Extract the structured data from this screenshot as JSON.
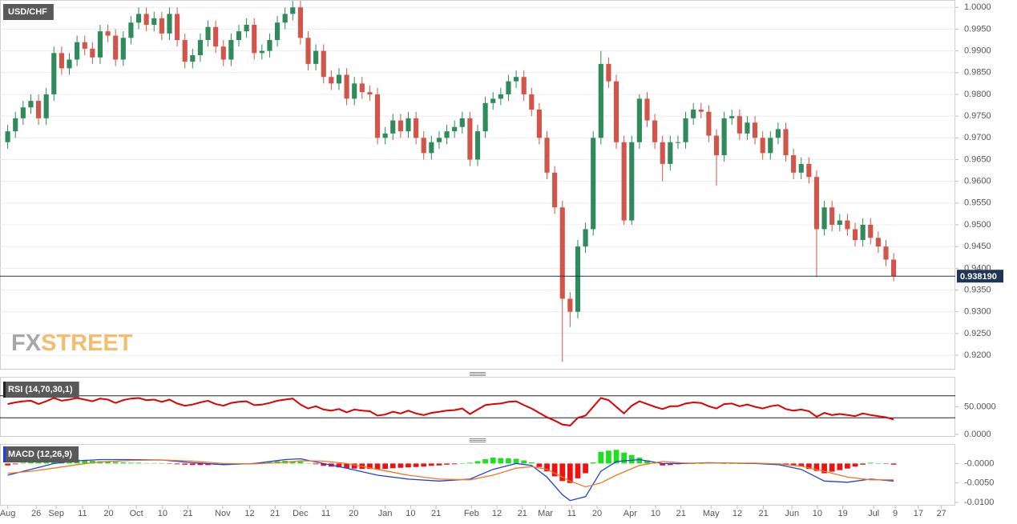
{
  "chart_data": [
    {
      "type": "candlestick",
      "title": "USD/CHF",
      "up_color": "#2f8a5c",
      "down_color": "#d2554a",
      "grid": true,
      "xlim": [
        -1,
        123
      ],
      "xticks": [
        {
          "value": 0.0,
          "label": "Aug"
        },
        {
          "value": 3.7,
          "label": "26"
        },
        {
          "value": 6.3,
          "label": "Sep"
        },
        {
          "value": 9.7,
          "label": "11"
        },
        {
          "value": 13.1,
          "label": "20"
        },
        {
          "value": 16.7,
          "label": "Oct"
        },
        {
          "value": 20.1,
          "label": "10"
        },
        {
          "value": 23.4,
          "label": "21"
        },
        {
          "value": 27.9,
          "label": "Nov"
        },
        {
          "value": 31.4,
          "label": "12"
        },
        {
          "value": 34.7,
          "label": "21"
        },
        {
          "value": 38.0,
          "label": "Dec"
        },
        {
          "value": 41.3,
          "label": "11"
        },
        {
          "value": 44.9,
          "label": "20"
        },
        {
          "value": 49.0,
          "label": "Jan"
        },
        {
          "value": 52.3,
          "label": "10"
        },
        {
          "value": 55.6,
          "label": "21"
        },
        {
          "value": 60.2,
          "label": "Feb"
        },
        {
          "value": 63.5,
          "label": "12"
        },
        {
          "value": 66.8,
          "label": "21"
        },
        {
          "value": 69.8,
          "label": "Mar"
        },
        {
          "value": 73.2,
          "label": "11"
        },
        {
          "value": 76.5,
          "label": "20"
        },
        {
          "value": 80.8,
          "label": "Apr"
        },
        {
          "value": 84.1,
          "label": "10"
        },
        {
          "value": 87.4,
          "label": "21"
        },
        {
          "value": 91.3,
          "label": "May"
        },
        {
          "value": 94.7,
          "label": "12"
        },
        {
          "value": 98.1,
          "label": "21"
        },
        {
          "value": 101.8,
          "label": "Jun"
        },
        {
          "value": 105.1,
          "label": "10"
        },
        {
          "value": 108.4,
          "label": "19"
        },
        {
          "value": 112.4,
          "label": "Jul"
        },
        {
          "value": 115.2,
          "label": "9"
        },
        {
          "value": 118.2,
          "label": "17"
        },
        {
          "value": 121.2,
          "label": "27"
        }
      ],
      "ylim": [
        0.9167,
        1.0017
      ],
      "yticks": [
        {
          "value": 1.0,
          "label": "1.0000"
        },
        {
          "value": 0.995,
          "label": "0.9950"
        },
        {
          "value": 0.99,
          "label": "0.9900"
        },
        {
          "value": 0.985,
          "label": "0.9850"
        },
        {
          "value": 0.98,
          "label": "0.9800"
        },
        {
          "value": 0.975,
          "label": "0.9750"
        },
        {
          "value": 0.97,
          "label": "0.9700"
        },
        {
          "value": 0.965,
          "label": "0.9650"
        },
        {
          "value": 0.96,
          "label": "0.9600"
        },
        {
          "value": 0.955,
          "label": "0.9550"
        },
        {
          "value": 0.95,
          "label": "0.9500"
        },
        {
          "value": 0.945,
          "label": "0.9450"
        },
        {
          "value": 0.94,
          "label": "0.9400"
        },
        {
          "value": 0.935,
          "label": "0.9350"
        },
        {
          "value": 0.93,
          "label": "0.9300"
        },
        {
          "value": 0.925,
          "label": "0.9250"
        },
        {
          "value": 0.92,
          "label": "0.9200"
        }
      ],
      "last_price": {
        "value": 0.93819,
        "label": "0.938190"
      },
      "watermark": [
        "FX",
        "STREET"
      ],
      "open": [
        0.969,
        0.9715,
        0.9745,
        0.977,
        0.9785,
        0.9745,
        0.98,
        0.9895,
        0.986,
        0.988,
        0.992,
        0.9905,
        0.9885,
        0.9945,
        0.9935,
        0.988,
        0.993,
        0.9965,
        0.9985,
        0.996,
        0.9975,
        0.994,
        0.9985,
        0.9925,
        0.9875,
        0.989,
        0.9925,
        0.9955,
        0.991,
        0.988,
        0.9925,
        0.9945,
        0.996,
        0.9895,
        0.99,
        0.9925,
        0.9965,
        0.9985,
        1.0,
        0.993,
        0.987,
        0.99,
        0.984,
        0.9825,
        0.9845,
        0.979,
        0.9825,
        0.9805,
        0.98,
        0.97,
        0.971,
        0.974,
        0.9715,
        0.9745,
        0.97,
        0.9665,
        0.969,
        0.97,
        0.9715,
        0.9725,
        0.9745,
        0.965,
        0.9715,
        0.978,
        0.979,
        0.98,
        0.983,
        0.984,
        0.98,
        0.9765,
        0.97,
        0.962,
        0.954,
        0.933,
        0.93,
        0.945,
        0.949,
        0.97,
        0.987,
        0.983,
        0.969,
        0.951,
        0.969,
        0.979,
        0.974,
        0.969,
        0.964,
        0.969,
        0.969,
        0.9745,
        0.9765,
        0.976,
        0.9705,
        0.966,
        0.9745,
        0.975,
        0.971,
        0.9735,
        0.97,
        0.9665,
        0.97,
        0.972,
        0.966,
        0.962,
        0.964,
        0.961,
        0.949,
        0.954,
        0.95,
        0.951,
        0.949,
        0.9465,
        0.95,
        0.947,
        0.945,
        0.942
      ],
      "high": [
        0.973,
        0.976,
        0.9785,
        0.98,
        0.98,
        0.9815,
        0.991,
        0.991,
        0.9895,
        0.9935,
        0.9935,
        0.992,
        0.996,
        0.996,
        0.995,
        0.9945,
        0.998,
        1.0,
        1.0,
        0.999,
        0.999,
        1.0,
        1.0,
        0.994,
        0.9905,
        0.994,
        0.997,
        0.997,
        0.9925,
        0.994,
        0.996,
        0.9975,
        0.9975,
        0.9915,
        0.994,
        0.998,
        1.0,
        1.0015,
        1.0015,
        0.9945,
        0.9915,
        0.9915,
        0.9855,
        0.986,
        0.986,
        0.984,
        0.984,
        0.982,
        0.9815,
        0.9725,
        0.9755,
        0.9755,
        0.976,
        0.976,
        0.9715,
        0.9705,
        0.9715,
        0.973,
        0.974,
        0.976,
        0.976,
        0.973,
        0.9795,
        0.9805,
        0.9815,
        0.9845,
        0.9855,
        0.9855,
        0.9815,
        0.978,
        0.9715,
        0.9635,
        0.9555,
        0.9345,
        0.9465,
        0.9505,
        0.9715,
        0.99,
        0.9885,
        0.9845,
        0.9705,
        0.9705,
        0.98,
        0.9805,
        0.9755,
        0.9705,
        0.9705,
        0.9705,
        0.976,
        0.978,
        0.978,
        0.9775,
        0.972,
        0.976,
        0.9765,
        0.9765,
        0.975,
        0.975,
        0.9715,
        0.9715,
        0.9735,
        0.9735,
        0.9675,
        0.9655,
        0.9655,
        0.9625,
        0.9555,
        0.9555,
        0.9525,
        0.9525,
        0.9505,
        0.9515,
        0.9515,
        0.9485,
        0.9465,
        0.9435
      ],
      "low": [
        0.9675,
        0.97,
        0.973,
        0.9755,
        0.973,
        0.973,
        0.9785,
        0.9845,
        0.9845,
        0.9865,
        0.989,
        0.987,
        0.987,
        0.992,
        0.9865,
        0.9865,
        0.9915,
        0.995,
        0.9945,
        0.9945,
        0.9925,
        0.9925,
        0.991,
        0.986,
        0.986,
        0.9875,
        0.991,
        0.9895,
        0.9865,
        0.9865,
        0.991,
        0.993,
        0.988,
        0.988,
        0.9885,
        0.991,
        0.995,
        0.997,
        0.9915,
        0.9855,
        0.9855,
        0.9825,
        0.981,
        0.981,
        0.9775,
        0.9775,
        0.979,
        0.9785,
        0.9685,
        0.9685,
        0.9695,
        0.97,
        0.97,
        0.9685,
        0.965,
        0.965,
        0.9675,
        0.9685,
        0.97,
        0.971,
        0.9635,
        0.9635,
        0.97,
        0.9765,
        0.9775,
        0.9785,
        0.9815,
        0.9785,
        0.975,
        0.9685,
        0.9605,
        0.9525,
        0.9185,
        0.9265,
        0.9285,
        0.9435,
        0.9475,
        0.9685,
        0.9815,
        0.9675,
        0.95,
        0.95,
        0.9675,
        0.9725,
        0.9675,
        0.96,
        0.9625,
        0.9675,
        0.9675,
        0.973,
        0.9745,
        0.969,
        0.959,
        0.9645,
        0.973,
        0.9695,
        0.9695,
        0.9685,
        0.965,
        0.965,
        0.9685,
        0.9645,
        0.9605,
        0.9605,
        0.9595,
        0.938,
        0.9475,
        0.9485,
        0.9485,
        0.9475,
        0.945,
        0.945,
        0.9455,
        0.9435,
        0.9405,
        0.937
      ],
      "close": [
        0.9715,
        0.9745,
        0.977,
        0.9785,
        0.9745,
        0.98,
        0.9895,
        0.986,
        0.988,
        0.992,
        0.9905,
        0.9885,
        0.9945,
        0.9935,
        0.988,
        0.993,
        0.9965,
        0.9985,
        0.996,
        0.9975,
        0.994,
        0.9985,
        0.9925,
        0.9875,
        0.989,
        0.9925,
        0.9955,
        0.991,
        0.988,
        0.9925,
        0.9945,
        0.996,
        0.9895,
        0.99,
        0.9925,
        0.9965,
        0.9985,
        1.0,
        0.993,
        0.987,
        0.99,
        0.984,
        0.9825,
        0.9845,
        0.979,
        0.9825,
        0.9805,
        0.98,
        0.97,
        0.971,
        0.974,
        0.9715,
        0.9745,
        0.97,
        0.9665,
        0.969,
        0.97,
        0.9715,
        0.9725,
        0.9745,
        0.965,
        0.9715,
        0.978,
        0.979,
        0.98,
        0.983,
        0.984,
        0.98,
        0.9765,
        0.97,
        0.962,
        0.954,
        0.933,
        0.93,
        0.945,
        0.949,
        0.97,
        0.987,
        0.983,
        0.969,
        0.951,
        0.969,
        0.979,
        0.974,
        0.969,
        0.964,
        0.969,
        0.969,
        0.9745,
        0.9765,
        0.976,
        0.9705,
        0.966,
        0.9745,
        0.975,
        0.971,
        0.9735,
        0.97,
        0.9665,
        0.97,
        0.972,
        0.966,
        0.962,
        0.964,
        0.961,
        0.949,
        0.954,
        0.95,
        0.951,
        0.949,
        0.9465,
        0.95,
        0.947,
        0.945,
        0.942,
        0.9382
      ]
    },
    {
      "type": "line",
      "title": "RSI (14,70,30,1)",
      "color": "#e00000",
      "levels": [
        70,
        30
      ],
      "ylim": [
        -4.4,
        104.4
      ],
      "yticks": [
        {
          "value": 50,
          "label": "50.0000"
        },
        {
          "value": 0,
          "label": "0.0000"
        }
      ],
      "values": [
        55,
        58,
        60,
        61,
        55,
        60,
        66,
        61,
        63,
        66,
        63,
        60,
        65,
        63,
        57,
        62,
        65,
        66,
        62,
        63,
        59,
        63,
        56,
        52,
        54,
        58,
        61,
        55,
        52,
        57,
        59,
        60,
        53,
        54,
        57,
        61,
        63,
        65,
        54,
        47,
        51,
        45,
        43,
        46,
        40,
        45,
        43,
        42,
        34,
        36,
        41,
        38,
        43,
        38,
        35,
        39,
        41,
        43,
        44,
        47,
        37,
        45,
        53,
        55,
        56,
        59,
        60,
        53,
        47,
        39,
        31,
        25,
        18,
        16,
        30,
        34,
        50,
        66,
        62,
        50,
        38,
        52,
        60,
        55,
        50,
        46,
        51,
        51,
        56,
        58,
        57,
        51,
        47,
        55,
        56,
        51,
        54,
        50,
        47,
        51,
        53,
        46,
        43,
        45,
        42,
        32,
        39,
        35,
        37,
        35,
        33,
        38,
        35,
        33,
        31,
        27
      ]
    },
    {
      "type": "macd",
      "title": "MACD (12,26,9)",
      "ylim": [
        -0.0108,
        0.005
      ],
      "yticks": [
        {
          "value": 0,
          "label": "-0.0000"
        },
        {
          "value": -0.005,
          "label": "-0.0050"
        },
        {
          "value": -0.01,
          "label": "-0.0100"
        }
      ],
      "series": [
        {
          "color": "#1f3fe0",
          "x": [
            0,
            3,
            6,
            9,
            12,
            16,
            20,
            24,
            28,
            32,
            36,
            38,
            41,
            44,
            48,
            52,
            56,
            60,
            63,
            66,
            68,
            70,
            72,
            73,
            75,
            77,
            79,
            82,
            85,
            88,
            91,
            94,
            97,
            100,
            103,
            106,
            109,
            112,
            115
          ],
          "values": [
            -0.003,
            -0.0015,
            0.0,
            0.0007,
            0.001,
            0.001,
            0.0009,
            0.0002,
            -0.0003,
            0.0,
            0.001,
            0.0012,
            0.0,
            -0.0012,
            -0.003,
            -0.004,
            -0.0045,
            -0.004,
            -0.0015,
            0.0,
            -0.0005,
            -0.0035,
            -0.008,
            -0.0095,
            -0.0085,
            -0.002,
            0.0005,
            0.001,
            0.0,
            0.0,
            0.0002,
            0.0001,
            0.0,
            -0.0003,
            -0.0015,
            -0.0045,
            -0.0048,
            -0.004,
            -0.0045
          ]
        },
        {
          "color": "#f07820",
          "x": [
            0,
            3,
            6,
            9,
            12,
            16,
            20,
            24,
            28,
            32,
            36,
            38,
            41,
            44,
            48,
            52,
            56,
            60,
            63,
            66,
            68,
            70,
            72,
            73,
            75,
            77,
            79,
            82,
            85,
            88,
            91,
            94,
            97,
            100,
            103,
            106,
            109,
            112,
            115
          ],
          "values": [
            -0.0025,
            -0.002,
            -0.0012,
            -0.0003,
            0.0004,
            0.0008,
            0.0009,
            0.0006,
            0.0,
            -0.0001,
            0.0003,
            0.0007,
            0.0006,
            0.0,
            -0.0015,
            -0.003,
            -0.004,
            -0.0042,
            -0.003,
            -0.0012,
            -0.0008,
            -0.0015,
            -0.0035,
            -0.0045,
            -0.006,
            -0.005,
            -0.003,
            -0.0005,
            0.0005,
            0.0001,
            0.0001,
            0.0001,
            0.0001,
            -0.0001,
            -0.0007,
            -0.002,
            -0.0035,
            -0.0042,
            -0.0042
          ]
        }
      ],
      "histogram": {
        "up_color": "#1ee01e",
        "down_color": "#f01010",
        "values": [
          -0.0005,
          -0.0002,
          0.0002,
          0.0005,
          0.0007,
          0.001,
          0.0012,
          0.0011,
          0.0011,
          0.001,
          0.0009,
          0.0007,
          0.0006,
          0.0005,
          0.0004,
          0.0003,
          0.0002,
          0.0002,
          0.0001,
          0.0001,
          0.0,
          -0.0001,
          -0.0002,
          -0.0003,
          -0.0004,
          -0.0004,
          -0.0004,
          -0.0003,
          -0.0003,
          -0.0002,
          -0.0001,
          0.0,
          0.0001,
          0.0003,
          0.0004,
          0.0006,
          0.0007,
          0.0006,
          0.0005,
          0.0001,
          -0.0002,
          -0.0006,
          -0.0008,
          -0.001,
          -0.0012,
          -0.0013,
          -0.0014,
          -0.0014,
          -0.0015,
          -0.0014,
          -0.0012,
          -0.0011,
          -0.001,
          -0.0009,
          -0.0008,
          -0.0006,
          -0.0005,
          -0.0003,
          -0.0002,
          0.0,
          0.0002,
          0.0006,
          0.0011,
          0.0015,
          0.0014,
          0.0013,
          0.0012,
          0.0008,
          0.0003,
          -0.0009,
          -0.002,
          -0.0033,
          -0.0045,
          -0.005,
          -0.0038,
          -0.0025,
          0.0003,
          0.003,
          0.0033,
          0.0035,
          0.0028,
          0.0022,
          0.0015,
          0.0008,
          0.0002,
          -0.0005,
          -0.0004,
          -0.0002,
          -0.0001,
          0.0,
          0.0,
          0.0001,
          0.0001,
          0.0,
          0.0,
          0.0,
          -0.0001,
          -0.0001,
          -0.0001,
          -0.0002,
          -0.0002,
          -0.0004,
          -0.0006,
          -0.0008,
          -0.0014,
          -0.0019,
          -0.0025,
          -0.0021,
          -0.0017,
          -0.0013,
          -0.0008,
          -0.0003,
          0.0002,
          0.0,
          -0.0001,
          -0.0003
        ]
      }
    }
  ]
}
